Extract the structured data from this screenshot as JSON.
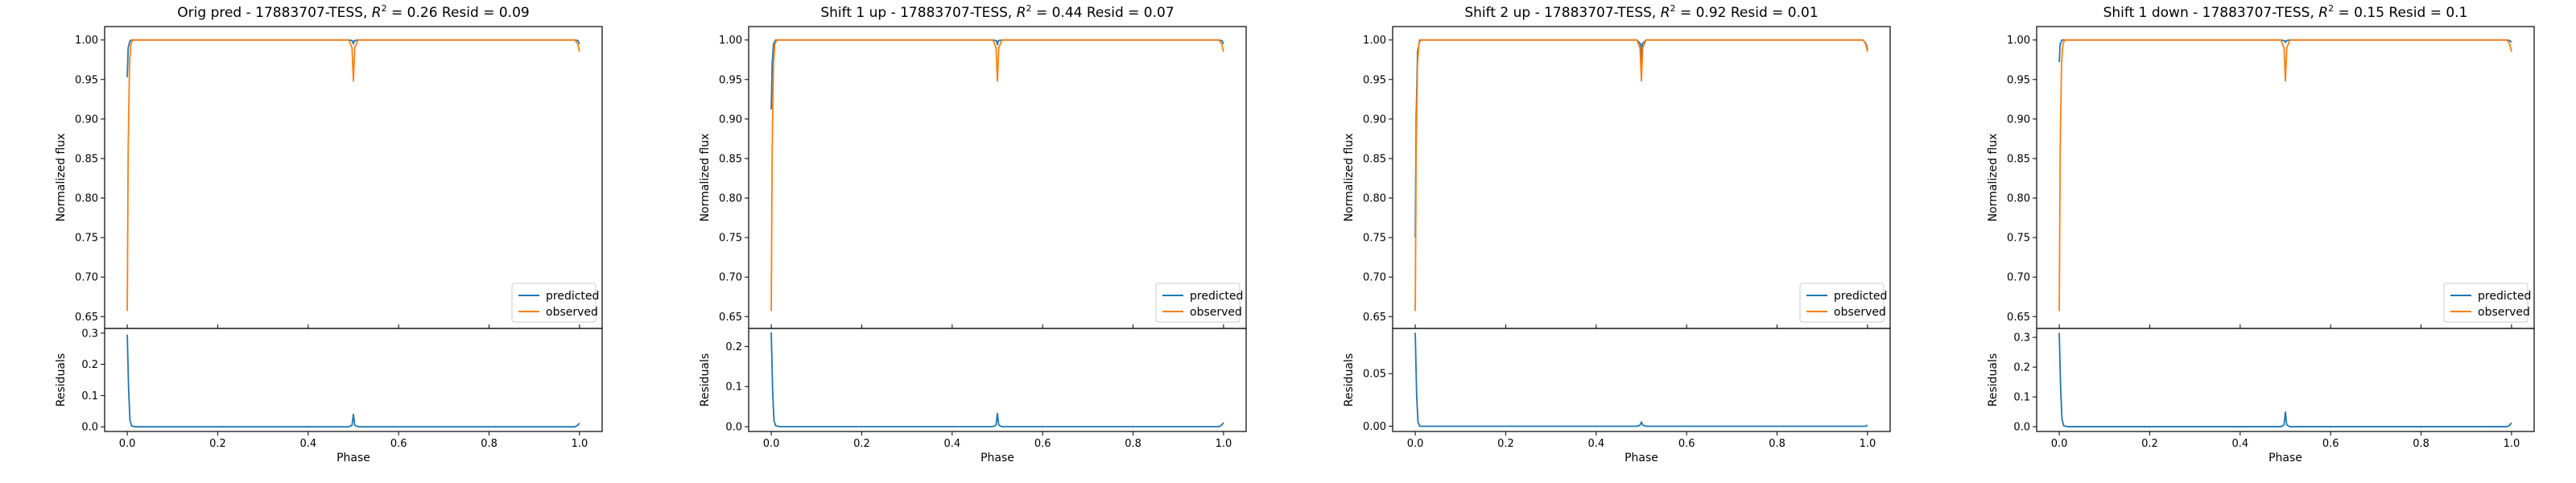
{
  "figure_title": "",
  "chart_data": [
    {
      "type": "line",
      "title": "Orig pred - 17883707-TESS, R² = 0.26 Resid = 0.09",
      "title_parts": {
        "prefix": "Orig pred - 17883707-TESS, ",
        "r2_symbol": "R",
        "r2_sup": "2",
        "r2_value": " = 0.26",
        "resid": " Resid = 0.09"
      },
      "xlabel": "Phase",
      "ylabel": "Normalized flux",
      "residual_ylabel": "Residuals",
      "xlim": [
        -0.05,
        1.05
      ],
      "ylim": [
        0.635,
        1.017
      ],
      "residual_ylim": [
        -0.015,
        0.315
      ],
      "xticks": [
        0.0,
        0.2,
        0.4,
        0.6,
        0.8,
        1.0
      ],
      "xtick_labels": [
        "0.0",
        "0.2",
        "0.4",
        "0.6",
        "0.8",
        "1.0"
      ],
      "yticks": [
        0.65,
        0.7,
        0.75,
        0.8,
        0.85,
        0.9,
        0.95,
        1.0
      ],
      "ytick_labels": [
        "0.65",
        "0.70",
        "0.75",
        "0.80",
        "0.85",
        "0.90",
        "0.95",
        "1.00"
      ],
      "residual_yticks": [
        0.0,
        0.1,
        0.2,
        0.3
      ],
      "residual_ytick_labels": [
        "0.0",
        "0.1",
        "0.2",
        "0.3"
      ],
      "legend": {
        "placement": "lower-right",
        "entries": [
          "predicted",
          "observed"
        ]
      },
      "series": [
        {
          "name": "predicted",
          "color": "#1f77b4",
          "x": [
            0.0,
            0.002,
            0.006,
            0.01,
            0.02,
            0.49,
            0.498,
            0.5,
            0.502,
            0.51,
            0.99,
            0.997,
            1.0
          ],
          "y": [
            0.953,
            0.99,
            0.999,
            1.0,
            1.0,
            1.0,
            0.999,
            0.995,
            0.999,
            1.0,
            1.0,
            0.999,
            0.995
          ]
        },
        {
          "name": "observed",
          "color": "#ff7f0e",
          "x": [
            0.0,
            0.002,
            0.005,
            0.008,
            0.012,
            0.02,
            0.49,
            0.497,
            0.5,
            0.503,
            0.51,
            0.99,
            0.996,
            1.0
          ],
          "y": [
            0.657,
            0.86,
            0.97,
            0.995,
            1.0,
            1.0,
            1.0,
            0.99,
            0.948,
            0.99,
            1.0,
            1.0,
            0.995,
            0.985
          ]
        }
      ],
      "residual_series": {
        "name": "residuals",
        "color": "#1f77b4",
        "x": [
          0.0,
          0.003,
          0.006,
          0.01,
          0.02,
          0.49,
          0.497,
          0.5,
          0.503,
          0.51,
          0.99,
          0.996,
          1.0
        ],
        "y": [
          0.295,
          0.12,
          0.02,
          0.002,
          0.0,
          0.0,
          0.005,
          0.04,
          0.005,
          0.0,
          0.0,
          0.005,
          0.012
        ]
      }
    },
    {
      "type": "line",
      "title": "Shift 1 up - 17883707-TESS, R² = 0.44 Resid = 0.07",
      "title_parts": {
        "prefix": "Shift 1 up - 17883707-TESS, ",
        "r2_symbol": "R",
        "r2_sup": "2",
        "r2_value": " = 0.44",
        "resid": " Resid = 0.07"
      },
      "xlabel": "Phase",
      "ylabel": "Normalized flux",
      "residual_ylabel": "Residuals",
      "xlim": [
        -0.05,
        1.05
      ],
      "ylim": [
        0.635,
        1.017
      ],
      "residual_ylim": [
        -0.012,
        0.245
      ],
      "xticks": [
        0.0,
        0.2,
        0.4,
        0.6,
        0.8,
        1.0
      ],
      "xtick_labels": [
        "0.0",
        "0.2",
        "0.4",
        "0.6",
        "0.8",
        "1.0"
      ],
      "yticks": [
        0.65,
        0.7,
        0.75,
        0.8,
        0.85,
        0.9,
        0.95,
        1.0
      ],
      "ytick_labels": [
        "0.65",
        "0.70",
        "0.75",
        "0.80",
        "0.85",
        "0.90",
        "0.95",
        "1.00"
      ],
      "residual_yticks": [
        0.0,
        0.1,
        0.2
      ],
      "residual_ytick_labels": [
        "0.0",
        "0.1",
        "0.2"
      ],
      "legend": {
        "placement": "lower-right",
        "entries": [
          "predicted",
          "observed"
        ]
      },
      "series": [
        {
          "name": "predicted",
          "color": "#1f77b4",
          "x": [
            0.0,
            0.002,
            0.005,
            0.01,
            0.02,
            0.49,
            0.498,
            0.5,
            0.502,
            0.51,
            0.99,
            0.997,
            1.0
          ],
          "y": [
            0.912,
            0.97,
            0.995,
            1.0,
            1.0,
            1.0,
            0.999,
            0.994,
            0.999,
            1.0,
            1.0,
            0.999,
            0.995
          ]
        },
        {
          "name": "observed",
          "color": "#ff7f0e",
          "x": [
            0.0,
            0.002,
            0.005,
            0.008,
            0.012,
            0.02,
            0.49,
            0.497,
            0.5,
            0.503,
            0.51,
            0.99,
            0.996,
            1.0
          ],
          "y": [
            0.657,
            0.86,
            0.97,
            0.995,
            1.0,
            1.0,
            1.0,
            0.99,
            0.948,
            0.99,
            1.0,
            1.0,
            0.995,
            0.985
          ]
        }
      ],
      "residual_series": {
        "name": "residuals",
        "color": "#1f77b4",
        "x": [
          0.0,
          0.003,
          0.006,
          0.01,
          0.02,
          0.49,
          0.497,
          0.5,
          0.503,
          0.51,
          0.99,
          0.996,
          1.0
        ],
        "y": [
          0.235,
          0.09,
          0.015,
          0.002,
          0.0,
          0.0,
          0.004,
          0.033,
          0.004,
          0.0,
          0.0,
          0.004,
          0.01
        ]
      }
    },
    {
      "type": "line",
      "title": "Shift 2 up - 17883707-TESS, R² = 0.92 Resid = 0.01",
      "title_parts": {
        "prefix": "Shift 2 up - 17883707-TESS, ",
        "r2_symbol": "R",
        "r2_sup": "2",
        "r2_value": " = 0.92",
        "resid": " Resid = 0.01"
      },
      "xlabel": "Phase",
      "ylabel": "Normalized flux",
      "residual_ylabel": "Residuals",
      "xlim": [
        -0.05,
        1.05
      ],
      "ylim": [
        0.635,
        1.017
      ],
      "residual_ylim": [
        -0.005,
        0.093
      ],
      "xticks": [
        0.0,
        0.2,
        0.4,
        0.6,
        0.8,
        1.0
      ],
      "xtick_labels": [
        "0.0",
        "0.2",
        "0.4",
        "0.6",
        "0.8",
        "1.0"
      ],
      "yticks": [
        0.65,
        0.7,
        0.75,
        0.8,
        0.85,
        0.9,
        0.95,
        1.0
      ],
      "ytick_labels": [
        "0.65",
        "0.70",
        "0.75",
        "0.80",
        "0.85",
        "0.90",
        "0.95",
        "1.00"
      ],
      "residual_yticks": [
        0.0,
        0.05
      ],
      "residual_ytick_labels": [
        "0.00",
        "0.05"
      ],
      "legend": {
        "placement": "lower-right",
        "entries": [
          "predicted",
          "observed"
        ]
      },
      "series": [
        {
          "name": "predicted",
          "color": "#1f77b4",
          "x": [
            0.0,
            0.002,
            0.005,
            0.01,
            0.02,
            0.49,
            0.498,
            0.5,
            0.502,
            0.51,
            0.99,
            0.997,
            1.0
          ],
          "y": [
            0.75,
            0.9,
            0.985,
            1.0,
            1.0,
            1.0,
            0.995,
            0.955,
            0.995,
            1.0,
            1.0,
            0.995,
            0.988
          ]
        },
        {
          "name": "observed",
          "color": "#ff7f0e",
          "x": [
            0.0,
            0.002,
            0.005,
            0.008,
            0.012,
            0.02,
            0.49,
            0.497,
            0.5,
            0.503,
            0.51,
            0.99,
            0.996,
            1.0
          ],
          "y": [
            0.657,
            0.86,
            0.97,
            0.995,
            1.0,
            1.0,
            1.0,
            0.99,
            0.948,
            0.99,
            1.0,
            1.0,
            0.995,
            0.985
          ]
        }
      ],
      "residual_series": {
        "name": "residuals",
        "color": "#1f77b4",
        "x": [
          0.0,
          0.003,
          0.006,
          0.01,
          0.02,
          0.49,
          0.497,
          0.5,
          0.503,
          0.51,
          0.99,
          0.996,
          1.0
        ],
        "y": [
          0.089,
          0.03,
          0.004,
          0.0,
          0.0,
          0.0,
          0.001,
          0.004,
          0.001,
          0.0,
          0.0,
          0.0,
          0.001
        ]
      }
    },
    {
      "type": "line",
      "title": "Shift 1 down - 17883707-TESS, R² = 0.15 Resid = 0.1",
      "title_parts": {
        "prefix": "Shift 1 down - 17883707-TESS, ",
        "r2_symbol": "R",
        "r2_sup": "2",
        "r2_value": " = 0.15",
        "resid": " Resid = 0.1"
      },
      "xlabel": "Phase",
      "ylabel": "Normalized flux",
      "residual_ylabel": "Residuals",
      "xlim": [
        -0.05,
        1.05
      ],
      "ylim": [
        0.635,
        1.017
      ],
      "residual_ylim": [
        -0.016,
        0.33
      ],
      "xticks": [
        0.0,
        0.2,
        0.4,
        0.6,
        0.8,
        1.0
      ],
      "xtick_labels": [
        "0.0",
        "0.2",
        "0.4",
        "0.6",
        "0.8",
        "1.0"
      ],
      "yticks": [
        0.65,
        0.7,
        0.75,
        0.8,
        0.85,
        0.9,
        0.95,
        1.0
      ],
      "ytick_labels": [
        "0.65",
        "0.70",
        "0.75",
        "0.80",
        "0.85",
        "0.90",
        "0.95",
        "1.00"
      ],
      "residual_yticks": [
        0.0,
        0.1,
        0.2,
        0.3
      ],
      "residual_ytick_labels": [
        "0.0",
        "0.1",
        "0.2",
        "0.3"
      ],
      "legend": {
        "placement": "lower-right",
        "entries": [
          "predicted",
          "observed"
        ]
      },
      "series": [
        {
          "name": "predicted",
          "color": "#1f77b4",
          "x": [
            0.0,
            0.002,
            0.006,
            0.01,
            0.02,
            0.49,
            0.498,
            0.5,
            0.502,
            0.51,
            0.99,
            0.997,
            1.0
          ],
          "y": [
            0.972,
            0.995,
            1.0,
            1.0,
            1.0,
            1.0,
            0.999,
            0.997,
            0.999,
            1.0,
            1.0,
            0.999,
            0.997
          ]
        },
        {
          "name": "observed",
          "color": "#ff7f0e",
          "x": [
            0.0,
            0.002,
            0.005,
            0.008,
            0.012,
            0.02,
            0.49,
            0.497,
            0.5,
            0.503,
            0.51,
            0.99,
            0.996,
            1.0
          ],
          "y": [
            0.657,
            0.86,
            0.97,
            0.995,
            1.0,
            1.0,
            1.0,
            0.99,
            0.948,
            0.99,
            1.0,
            1.0,
            0.995,
            0.985
          ]
        }
      ],
      "residual_series": {
        "name": "residuals",
        "color": "#1f77b4",
        "x": [
          0.0,
          0.003,
          0.006,
          0.01,
          0.02,
          0.49,
          0.497,
          0.5,
          0.503,
          0.51,
          0.99,
          0.996,
          1.0
        ],
        "y": [
          0.315,
          0.13,
          0.025,
          0.003,
          0.0,
          0.0,
          0.006,
          0.049,
          0.006,
          0.0,
          0.0,
          0.005,
          0.013
        ]
      }
    }
  ]
}
